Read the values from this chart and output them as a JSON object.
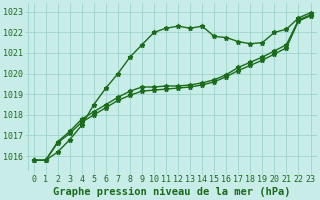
{
  "x": [
    0,
    1,
    2,
    3,
    4,
    5,
    6,
    7,
    8,
    9,
    10,
    11,
    12,
    13,
    14,
    15,
    16,
    17,
    18,
    19,
    20,
    21,
    22,
    23
  ],
  "line1": [
    1015.8,
    1015.8,
    1016.2,
    1016.8,
    1017.5,
    1018.5,
    1019.3,
    1020.0,
    1020.8,
    1021.4,
    1022.0,
    1022.2,
    1022.3,
    1022.2,
    1022.3,
    1021.8,
    1021.75,
    1021.55,
    1021.45,
    1021.5,
    1022.0,
    1022.15,
    1022.7,
    1022.95
  ],
  "line2": [
    1015.8,
    1015.8,
    1016.7,
    1017.2,
    1017.8,
    1018.15,
    1018.5,
    1018.85,
    1019.15,
    1019.35,
    1019.35,
    1019.4,
    1019.4,
    1019.45,
    1019.55,
    1019.7,
    1019.95,
    1020.3,
    1020.55,
    1020.8,
    1021.1,
    1021.4,
    1022.6,
    1022.85
  ],
  "line3": [
    1015.8,
    1015.8,
    1016.65,
    1017.1,
    1017.65,
    1018.0,
    1018.35,
    1018.7,
    1018.95,
    1019.15,
    1019.2,
    1019.25,
    1019.3,
    1019.35,
    1019.45,
    1019.6,
    1019.85,
    1020.15,
    1020.4,
    1020.65,
    1020.95,
    1021.25,
    1022.55,
    1022.8
  ],
  "line_color": "#1a6b1a",
  "bg_color": "#c8ece8",
  "grid_color": "#96cfc8",
  "xlabel": "Graphe pression niveau de la mer (hPa)",
  "ylim": [
    1015.3,
    1023.4
  ],
  "yticks": [
    1016,
    1017,
    1018,
    1019,
    1020,
    1021,
    1022,
    1023
  ],
  "xticks": [
    0,
    1,
    2,
    3,
    4,
    5,
    6,
    7,
    8,
    9,
    10,
    11,
    12,
    13,
    14,
    15,
    16,
    17,
    18,
    19,
    20,
    21,
    22,
    23
  ],
  "xlabel_color": "#1a6b1a",
  "xlabel_fontsize": 7.5,
  "tick_fontsize": 6,
  "marker": "*",
  "marker_size": 3.5,
  "line_width": 1.0
}
